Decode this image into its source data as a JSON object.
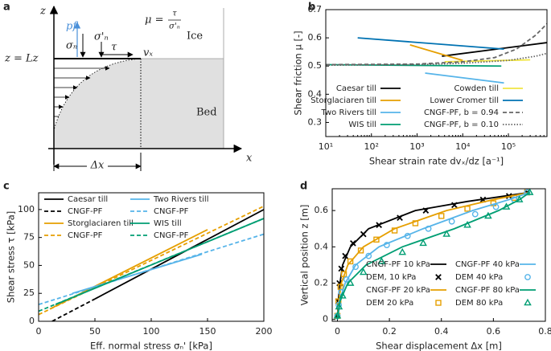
{
  "diagram": {
    "panel": "a",
    "z_axis": "z",
    "x_axis": "x",
    "pf": "pf",
    "sigma_n": "σₙ",
    "sigma_n_eff": "σ'ₙ",
    "tau": "τ",
    "mu": "μ =",
    "mu_num": "τ",
    "mu_den": "σ'ₙ",
    "ice": "Ice",
    "bed": "Bed",
    "surface": "z = Lz",
    "vx": "vₓ",
    "dx": "Δx"
  },
  "chart_data": [
    {
      "type": "line",
      "panel": "b",
      "xlabel": "Shear strain rate dvₓ/dz [a⁻¹]",
      "ylabel": "Shear friction μ [-]",
      "xscale": "log",
      "xlim": [
        10,
        700000
      ],
      "ylim": [
        0.25,
        0.7
      ],
      "xticks": [
        {
          "value": 10,
          "label": "10¹"
        },
        {
          "value": 100,
          "label": "10²"
        },
        {
          "value": 1000,
          "label": "10³"
        },
        {
          "value": 10000,
          "label": "10⁴"
        },
        {
          "value": 100000,
          "label": "10⁵"
        }
      ],
      "yticks": [
        0.3,
        0.4,
        0.5,
        0.6,
        0.7
      ],
      "legend": "lower right",
      "series": [
        {
          "name": "Caesar till",
          "color": "#000000",
          "style": "solid",
          "x": [
            3500,
            700000
          ],
          "values": [
            0.535,
            0.583
          ]
        },
        {
          "name": "Storglaciaren till",
          "color": "#e69f00",
          "style": "solid",
          "x": [
            700,
            10000
          ],
          "values": [
            0.575,
            0.52
          ]
        },
        {
          "name": "Two Rivers till",
          "color": "#56b4e9",
          "style": "solid",
          "x": [
            1500,
            80000
          ],
          "values": [
            0.475,
            0.44
          ]
        },
        {
          "name": "WIS till",
          "color": "#009e73",
          "style": "solid",
          "x": [
            10,
            70000
          ],
          "values": [
            0.505,
            0.5
          ]
        },
        {
          "name": "Cowden till",
          "color": "#f0e442",
          "style": "solid",
          "x": [
            4000,
            300000
          ],
          "values": [
            0.515,
            0.522
          ]
        },
        {
          "name": "Lower Cromer till",
          "color": "#0072b2",
          "style": "solid",
          "x": [
            50,
            80000
          ],
          "values": [
            0.6,
            0.56
          ]
        },
        {
          "name": "CNGF-PF, b = 0.94",
          "color": "#666666",
          "style": "dashed",
          "x": [
            10,
            1000,
            10000,
            50000,
            150000,
            400000,
            700000
          ],
          "values": [
            0.505,
            0.507,
            0.515,
            0.53,
            0.56,
            0.61,
            0.65
          ]
        },
        {
          "name": "CNGF-PF, b = 0.10",
          "color": "#666666",
          "style": "dotted",
          "x": [
            10,
            1000,
            10000,
            100000,
            400000,
            700000
          ],
          "values": [
            0.503,
            0.505,
            0.51,
            0.52,
            0.535,
            0.545
          ]
        }
      ]
    },
    {
      "type": "line",
      "panel": "c",
      "xlabel": "Eff. normal stress σₙ' [kPa]",
      "ylabel": "Shear stress τ [kPa]",
      "xlim": [
        0,
        200
      ],
      "ylim": [
        0,
        115
      ],
      "xticks": [
        0,
        50,
        100,
        150,
        200
      ],
      "yticks": [
        0,
        25,
        50,
        75,
        100
      ],
      "legend": "upper left",
      "series": [
        {
          "name": "Caesar till",
          "color": "#000000",
          "style": "solid",
          "x": [
            50,
            200
          ],
          "values": [
            20,
            100
          ]
        },
        {
          "name": "CNGF-PF",
          "color": "#000000",
          "style": "dashed",
          "x": [
            12,
            50
          ],
          "values": [
            0,
            20
          ]
        },
        {
          "name": "Storglaciaren till",
          "color": "#e69f00",
          "style": "solid",
          "x": [
            10,
            150
          ],
          "values": [
            11,
            82
          ]
        },
        {
          "name": "CNGF-PF",
          "color": "#e69f00",
          "style": "dashed",
          "x": [
            0,
            200
          ],
          "values": [
            6,
            103
          ]
        },
        {
          "name": "Two Rivers till",
          "color": "#56b4e9",
          "style": "solid",
          "x": [
            30,
            145
          ],
          "values": [
            25,
            60
          ]
        },
        {
          "name": "CNGF-PF",
          "color": "#56b4e9",
          "style": "dashed",
          "x": [
            0,
            200
          ],
          "values": [
            15,
            78
          ]
        },
        {
          "name": "WIS till",
          "color": "#009e73",
          "style": "solid",
          "x": [
            15,
            200
          ],
          "values": [
            15,
            92
          ]
        },
        {
          "name": "CNGF-PF",
          "color": "#009e73",
          "style": "dashed",
          "x": [
            0,
            200
          ],
          "values": [
            9,
            92
          ]
        }
      ]
    },
    {
      "type": "line",
      "panel": "d",
      "xlabel": "Shear displacement Δx [m]",
      "ylabel": "Vertical position z [m]",
      "xlim": [
        -0.02,
        0.8
      ],
      "ylim": [
        -0.01,
        0.72
      ],
      "xticks": [
        0,
        0.2,
        0.4,
        0.6,
        0.8
      ],
      "yticks": [
        0,
        0.2,
        0.4,
        0.6
      ],
      "legend": "lower right",
      "series": [
        {
          "name": "CNGF-PF 10 kPa",
          "color": "#000000",
          "style": "solid",
          "x": [
            0,
            0.003,
            0.01,
            0.02,
            0.05,
            0.12,
            0.3,
            0.5,
            0.74
          ],
          "values": [
            0,
            0.1,
            0.2,
            0.3,
            0.4,
            0.5,
            0.6,
            0.65,
            0.7
          ]
        },
        {
          "name": "DEM, 10 kPa",
          "color": "#000000",
          "marker": "x",
          "x": [
            0,
            0.003,
            0.008,
            0.015,
            0.03,
            0.06,
            0.1,
            0.16,
            0.24,
            0.34,
            0.45,
            0.56,
            0.66,
            0.73
          ],
          "values": [
            0.02,
            0.1,
            0.2,
            0.28,
            0.35,
            0.42,
            0.47,
            0.52,
            0.56,
            0.6,
            0.63,
            0.66,
            0.68,
            0.7
          ]
        },
        {
          "name": "CNGF-PF 20 kPa",
          "color": "#e69f00",
          "style": "solid",
          "x": [
            0,
            0.005,
            0.015,
            0.04,
            0.1,
            0.22,
            0.42,
            0.6,
            0.74
          ],
          "values": [
            0,
            0.1,
            0.2,
            0.3,
            0.4,
            0.5,
            0.6,
            0.66,
            0.7
          ]
        },
        {
          "name": "DEM 20 kPa",
          "color": "#e69f00",
          "marker": "square",
          "x": [
            0,
            0.004,
            0.012,
            0.025,
            0.05,
            0.09,
            0.15,
            0.22,
            0.3,
            0.4,
            0.5,
            0.6,
            0.68,
            0.73
          ],
          "values": [
            0.02,
            0.1,
            0.18,
            0.25,
            0.32,
            0.38,
            0.44,
            0.49,
            0.53,
            0.57,
            0.61,
            0.64,
            0.67,
            0.7
          ]
        },
        {
          "name": "CNGF-PF 40 kPa",
          "color": "#56b4e9",
          "style": "solid",
          "x": [
            0,
            0.008,
            0.03,
            0.07,
            0.16,
            0.33,
            0.52,
            0.66,
            0.74
          ],
          "values": [
            0,
            0.1,
            0.2,
            0.3,
            0.4,
            0.5,
            0.6,
            0.66,
            0.7
          ]
        },
        {
          "name": "DEM 40 kPa",
          "color": "#56b4e9",
          "marker": "circle",
          "x": [
            0,
            0.005,
            0.015,
            0.035,
            0.07,
            0.12,
            0.19,
            0.27,
            0.35,
            0.44,
            0.53,
            0.61,
            0.68,
            0.73
          ],
          "values": [
            0.02,
            0.08,
            0.15,
            0.22,
            0.29,
            0.35,
            0.41,
            0.46,
            0.5,
            0.54,
            0.58,
            0.62,
            0.66,
            0.7
          ]
        },
        {
          "name": "CNGF-PF 80 kPa",
          "color": "#009e73",
          "style": "solid",
          "x": [
            0,
            0.01,
            0.04,
            0.11,
            0.25,
            0.45,
            0.62,
            0.7,
            0.74
          ],
          "values": [
            0,
            0.1,
            0.2,
            0.3,
            0.4,
            0.5,
            0.6,
            0.66,
            0.7
          ]
        },
        {
          "name": "DEM 80 kPa",
          "color": "#009e73",
          "marker": "triangle",
          "x": [
            0,
            0.006,
            0.02,
            0.05,
            0.1,
            0.17,
            0.25,
            0.33,
            0.42,
            0.5,
            0.58,
            0.65,
            0.7,
            0.74
          ],
          "values": [
            0.02,
            0.07,
            0.13,
            0.2,
            0.26,
            0.32,
            0.37,
            0.42,
            0.47,
            0.52,
            0.57,
            0.62,
            0.66,
            0.7
          ]
        }
      ]
    }
  ]
}
